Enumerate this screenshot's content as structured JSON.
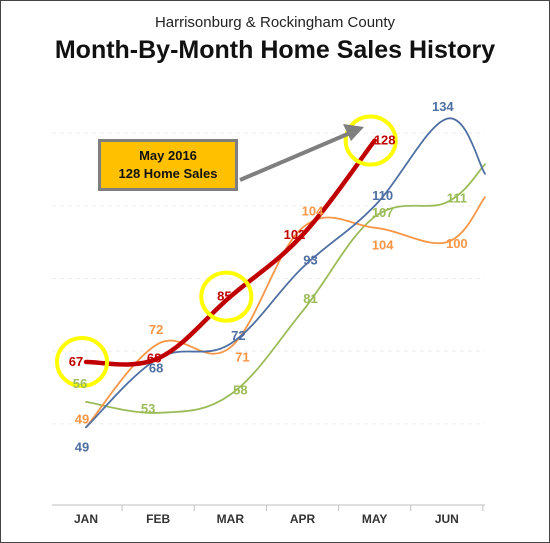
{
  "chart": {
    "subtitle": "Harrisonburg & Rockingham County",
    "title": "Month-By-Month Home Sales History"
  },
  "callout": {
    "line1": "May 2016",
    "line2": "128 Home Sales"
  },
  "colors": {
    "red": "#c00000",
    "blue": "#4f6fa3",
    "orange": "#f79646",
    "green": "#9bbb59",
    "highlight": "#ffff00",
    "arrow": "#7f7f7f"
  },
  "chart_data": {
    "type": "line",
    "categories": [
      "JAN",
      "FEB",
      "MAR",
      "APR",
      "MAY",
      "JUN"
    ],
    "series": [
      {
        "color": "#c00000",
        "values": [
          67,
          68,
          85,
          102,
          128,
          null
        ]
      },
      {
        "color": "#4f6fa3",
        "values": [
          49,
          68,
          72,
          93,
          110,
          134
        ]
      },
      {
        "color": "#f79646",
        "values": [
          49,
          72,
          71,
          104,
          104,
          100
        ]
      },
      {
        "color": "#9bbb59",
        "values": [
          56,
          53,
          58,
          81,
          107,
          111
        ]
      }
    ],
    "highlighted_points": [
      {
        "category": "JAN",
        "value": 67
      },
      {
        "category": "MAR",
        "value": 85
      },
      {
        "category": "MAY",
        "value": 128
      }
    ],
    "xlabel": "",
    "ylabel": "",
    "ylim": [
      40,
      140
    ],
    "grid": true,
    "legend": "none"
  }
}
